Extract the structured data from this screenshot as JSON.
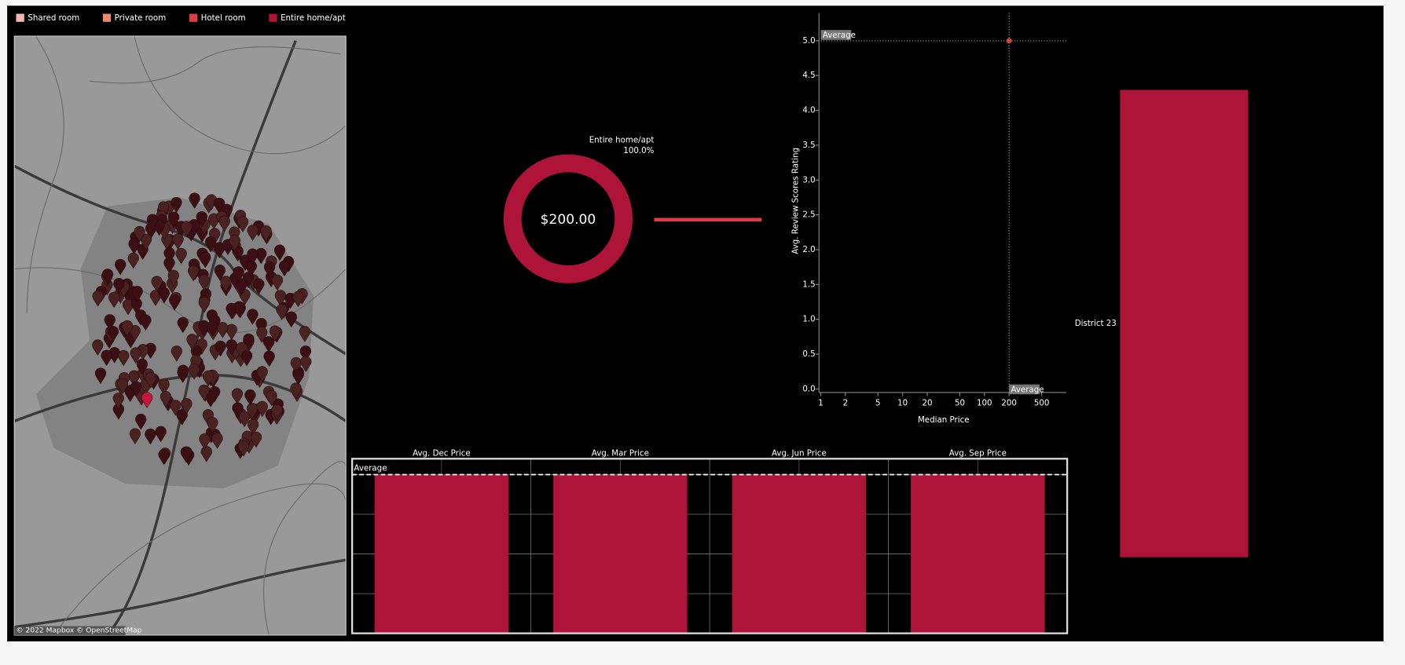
{
  "legend": {
    "items": [
      {
        "label": "Shared room",
        "color": "#f4b6ae"
      },
      {
        "label": "Private room",
        "color": "#ee8a6e"
      },
      {
        "label": "Hotel room",
        "color": "#dc3c46"
      },
      {
        "label": "Entire home/apt",
        "color": "#ae1438"
      }
    ]
  },
  "map": {
    "attribution": "© 2022 Mapbox © OpenStreetMap"
  },
  "chart_data": [
    {
      "type": "pie",
      "center_label": "$200.00",
      "categories": [
        "Entire home/apt"
      ],
      "values": [
        100
      ],
      "value_labels": [
        "100.0%"
      ],
      "color": "#ae1438"
    },
    {
      "type": "scatter",
      "x_label": "Median Price",
      "y_label": "Avg. Review Scores Rating",
      "x": [
        200
      ],
      "y": [
        5.0
      ],
      "color": "#dc3c46",
      "log_x": true,
      "xlim": [
        1,
        1000
      ],
      "xticks": [
        1,
        2,
        5,
        10,
        20,
        50,
        100,
        200,
        500
      ],
      "ylim": [
        0,
        5.4
      ],
      "yticks": [
        {
          "value": 0,
          "label": "0.0"
        },
        {
          "value": 0.5,
          "label": "0.5"
        },
        {
          "value": 1,
          "label": "1.0"
        },
        {
          "value": 1.5,
          "label": "1.5"
        },
        {
          "value": 2,
          "label": "2.0"
        },
        {
          "value": 2.5,
          "label": "2.5"
        },
        {
          "value": 3,
          "label": "3.0"
        },
        {
          "value": 3.5,
          "label": "3.5"
        },
        {
          "value": 4,
          "label": "4.0"
        },
        {
          "value": 4.5,
          "label": "4.5"
        },
        {
          "value": 5,
          "label": "5.0"
        }
      ],
      "reference_lines": [
        {
          "axis": "x",
          "value": 200,
          "label": "Average"
        },
        {
          "axis": "y",
          "value": 5.0,
          "label": "Average"
        }
      ]
    },
    {
      "type": "bar",
      "categories": [
        "Avg. Dec Price",
        "Avg. Mar Price",
        "Avg. Jun Price",
        "Avg. Sep Price"
      ],
      "values": [
        200,
        200,
        200,
        200
      ],
      "color": "#ae1438",
      "ylim": [
        0,
        220
      ],
      "yticks": [
        0,
        50,
        100,
        150,
        200
      ],
      "grid": true,
      "reference_line": {
        "value": 200,
        "label": "Average"
      }
    },
    {
      "type": "bar",
      "categories": [
        "District 23"
      ],
      "values": [
        200
      ],
      "color": "#ae1438",
      "ylim": [
        0,
        200
      ]
    }
  ]
}
